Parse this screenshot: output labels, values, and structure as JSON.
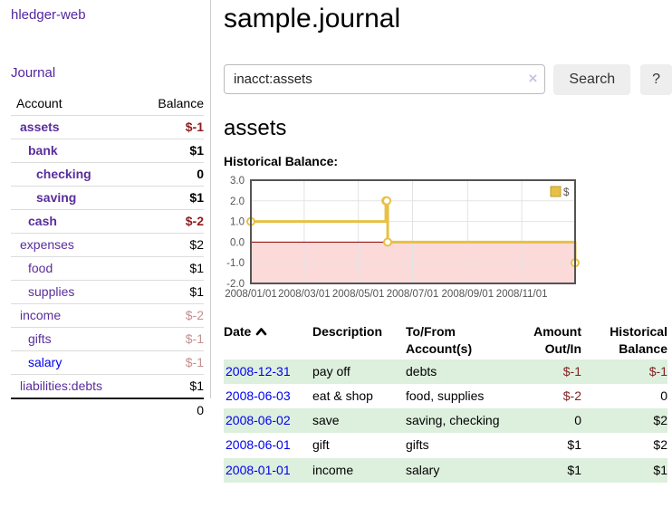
{
  "app": {
    "brand": "hledger-web",
    "journal_link": "Journal"
  },
  "sidebar": {
    "header": {
      "account": "Account",
      "balance": "Balance"
    },
    "accounts": [
      {
        "name": "assets",
        "balance": "$-1",
        "level": 1,
        "bold": true,
        "neg": "strong"
      },
      {
        "name": "bank",
        "balance": "$1",
        "level": 2,
        "bold": true,
        "neg": "none"
      },
      {
        "name": "checking",
        "balance": "0",
        "level": 3,
        "bold": true,
        "neg": "none"
      },
      {
        "name": "saving",
        "balance": "$1",
        "level": 3,
        "bold": true,
        "neg": "none"
      },
      {
        "name": "cash",
        "balance": "$-2",
        "level": 2,
        "bold": true,
        "neg": "strong"
      },
      {
        "name": "expenses",
        "balance": "$2",
        "level": 1,
        "bold": false,
        "neg": "none"
      },
      {
        "name": "food",
        "balance": "$1",
        "level": 2,
        "bold": false,
        "neg": "none"
      },
      {
        "name": "supplies",
        "balance": "$1",
        "level": 2,
        "bold": false,
        "neg": "none"
      },
      {
        "name": "income",
        "balance": "$-2",
        "level": 1,
        "bold": false,
        "neg": "light"
      },
      {
        "name": "gifts",
        "balance": "$-1",
        "level": 2,
        "bold": false,
        "neg": "light"
      },
      {
        "name": "salary",
        "balance": "$-1",
        "level": 2,
        "bold": false,
        "neg": "light",
        "blue": true
      },
      {
        "name": "liabilities:debts",
        "balance": "$1",
        "level": 1,
        "bold": false,
        "neg": "none"
      }
    ],
    "total": "0"
  },
  "header": {
    "title": "sample.journal"
  },
  "search": {
    "value": "inacct:assets",
    "clear_icon": "×",
    "button_label": "Search",
    "help_label": "?"
  },
  "account_page": {
    "heading": "assets",
    "chart_label": "Historical Balance:"
  },
  "chart_data": {
    "type": "line",
    "style": "steps",
    "title": "Historical Balance",
    "legend": "$",
    "legend_position": "top-right",
    "series": [
      {
        "name": "$",
        "color": "#e8c044",
        "points": [
          [
            "2008-01-01",
            1
          ],
          [
            "2008-06-01",
            2
          ],
          [
            "2008-06-02",
            2
          ],
          [
            "2008-06-03",
            0
          ],
          [
            "2008-12-31",
            -1
          ]
        ]
      }
    ],
    "xrange": [
      "2008-01-01",
      "2008-12-31"
    ],
    "x_ticks": [
      "2008/01/01",
      "2008/03/01",
      "2008/05/01",
      "2008/07/01",
      "2008/09/01",
      "2008/11/01"
    ],
    "y_ticks": [
      3.0,
      2.0,
      1.0,
      0.0,
      -1.0,
      -2.0
    ],
    "ylim": [
      -2,
      3
    ],
    "grid": true,
    "negative_region_color": "#fcdada",
    "zero_line_color": "#8b0000",
    "border_color": "#545454"
  },
  "register": {
    "col_date": "Date",
    "col_description": "Description",
    "col_account": "To/From Account(s)",
    "col_amount": "Amount Out/In",
    "col_balance": "Historical Balance",
    "rows": [
      {
        "date": "2008-12-31",
        "description": "pay off",
        "accounts": "debts",
        "amount": "$-1",
        "balance": "$-1",
        "amount_neg": true,
        "balance_neg": true
      },
      {
        "date": "2008-06-03",
        "description": "eat & shop",
        "accounts": "food, supplies",
        "amount": "$-2",
        "balance": "0",
        "amount_neg": true,
        "balance_neg": false
      },
      {
        "date": "2008-06-02",
        "description": "save",
        "accounts": "saving, checking",
        "amount": "0",
        "balance": "$2",
        "amount_neg": false,
        "balance_neg": false
      },
      {
        "date": "2008-06-01",
        "description": "gift",
        "accounts": "gifts",
        "amount": "$1",
        "balance": "$2",
        "amount_neg": false,
        "balance_neg": false
      },
      {
        "date": "2008-01-01",
        "description": "income",
        "accounts": "salary",
        "amount": "$1",
        "balance": "$1",
        "amount_neg": false,
        "balance_neg": false
      }
    ]
  }
}
